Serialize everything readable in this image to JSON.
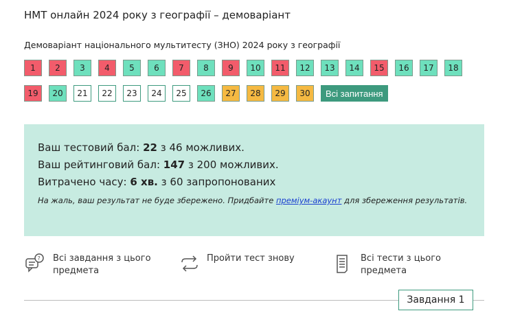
{
  "title": "НМТ онлайн 2024 року з географії – демоваріант",
  "subtitle": "Демоваріант національного мультитесту (ЗНО) 2024 року з географії",
  "colors": {
    "wrong": "#f25c6b",
    "right": "#6ee0bd",
    "skipped": "#f5b942",
    "accent": "#3d9a7e",
    "panel": "#c7ebe1"
  },
  "questions": [
    {
      "n": "1",
      "s": "wrong"
    },
    {
      "n": "2",
      "s": "wrong"
    },
    {
      "n": "3",
      "s": "right"
    },
    {
      "n": "4",
      "s": "wrong"
    },
    {
      "n": "5",
      "s": "right"
    },
    {
      "n": "6",
      "s": "right"
    },
    {
      "n": "7",
      "s": "wrong"
    },
    {
      "n": "8",
      "s": "right"
    },
    {
      "n": "9",
      "s": "wrong"
    },
    {
      "n": "10",
      "s": "right"
    },
    {
      "n": "11",
      "s": "wrong"
    },
    {
      "n": "12",
      "s": "right"
    },
    {
      "n": "13",
      "s": "right"
    },
    {
      "n": "14",
      "s": "right"
    },
    {
      "n": "15",
      "s": "wrong"
    },
    {
      "n": "16",
      "s": "right"
    },
    {
      "n": "17",
      "s": "right"
    },
    {
      "n": "18",
      "s": "right"
    },
    {
      "n": "19",
      "s": "wrong"
    },
    {
      "n": "20",
      "s": "right"
    },
    {
      "n": "21",
      "s": "empty"
    },
    {
      "n": "22",
      "s": "empty"
    },
    {
      "n": "23",
      "s": "empty"
    },
    {
      "n": "24",
      "s": "empty"
    },
    {
      "n": "25",
      "s": "empty"
    },
    {
      "n": "26",
      "s": "right"
    },
    {
      "n": "27",
      "s": "skip"
    },
    {
      "n": "28",
      "s": "skip"
    },
    {
      "n": "29",
      "s": "skip"
    },
    {
      "n": "30",
      "s": "skip"
    }
  ],
  "all_questions_label": "Всі запитання",
  "result": {
    "test_label": "Ваш тестовий бал:",
    "test_score": "22",
    "test_rest": "з 46 можливих.",
    "rating_label": "Ваш рейтинговий бал:",
    "rating_score": "147",
    "rating_rest": "з 200 можливих.",
    "time_label": "Витрачено часу:",
    "time_value": "6 хв.",
    "time_rest": "з 60 запропонованих",
    "note_before": "На жаль, ваш результат не буде збережено. Придбайте ",
    "note_link": "преміум-акаунт",
    "note_after": " для збереження результатів."
  },
  "links": {
    "all_tasks": "Всі завдання з цього предмета",
    "retry": "Пройти тест знову",
    "all_tests": "Всі тести з цього предмета"
  },
  "task_label": "Завдання 1"
}
